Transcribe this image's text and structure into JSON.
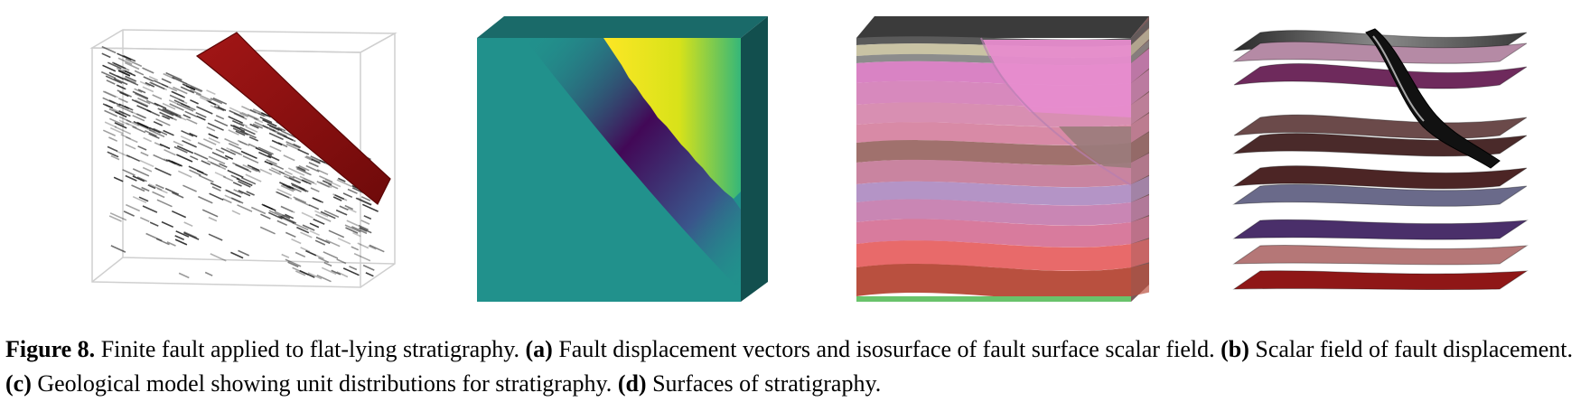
{
  "figure": {
    "caption": {
      "label": "Figure 8.",
      "intro": " Finite fault applied to flat-lying stratigraphy. ",
      "parts": [
        {
          "tag": "(a)",
          "text": " Fault displacement vectors and isosurface of fault surface scalar field. "
        },
        {
          "tag": "(b)",
          "text": " Scalar field of fault displacement. "
        },
        {
          "tag": "(c)",
          "text": " Geological model showing unit distributions for stratigraphy. "
        },
        {
          "tag": "(d)",
          "text": " Surfaces of stratigraphy."
        }
      ]
    },
    "colors": {
      "fault_surface": "#8b0f0f",
      "scalar_base": "#21918c",
      "scalar_low": "#440154",
      "scalar_high": "#fde725",
      "unit_top": "#555555",
      "unit_bottom": "#69c36b"
    }
  }
}
